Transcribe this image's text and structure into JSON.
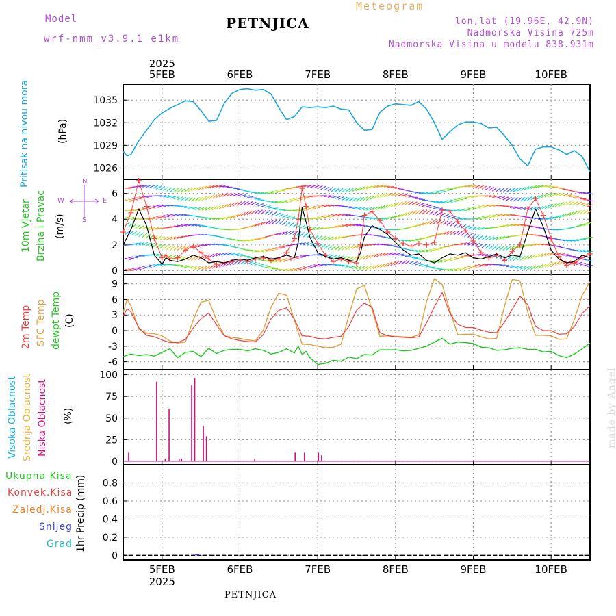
{
  "header": {
    "model_label": "Model",
    "model_name": "wrf-nmm_v3.9.1 e1km",
    "station": "PETNJICA",
    "meteogram": "Meteogram",
    "lonlat": "lon,lat (19.96E, 42.9N)",
    "altitude": "Nadmorska Visina 725m",
    "model_altitude": "Nadmorska Visina u modelu 838.931m",
    "year": "2025",
    "footer": "PETNJICA",
    "watermark": "made by Angel"
  },
  "colors": {
    "pressure": "#1aa5e0",
    "wind_speed": "#000000",
    "wind_gust": "#ff4040",
    "temp_2m": "#f04040",
    "temp_sfc": "#e0a040",
    "dewpoint": "#20c820",
    "cloud_high": "#1ab0e8",
    "cloud_mid": "#e8b040",
    "cloud_low": "#d0107f",
    "precip_total": "#20c820",
    "precip_conv": "#f04040",
    "precip_frozen": "#f08020",
    "snow": "#4040e0",
    "grad": "#20c0c0"
  },
  "chart_data": [
    {
      "type": "line",
      "panel": "pressure",
      "label_lines": [
        "Pritisak na nivou mora"
      ],
      "unit": "(hPa)",
      "x_ticks": [
        "5FEB",
        "6FEB",
        "7FEB",
        "8FEB",
        "9FEB",
        "10FEB"
      ],
      "x_range_days": [
        4.5,
        10.5
      ],
      "ylim": [
        1024.5,
        1037.1
      ],
      "yticks": [
        1026,
        1029,
        1032,
        1035
      ],
      "grid": true,
      "series": [
        {
          "x": [
            4.5,
            4.55,
            4.6,
            4.7,
            4.8,
            4.9,
            5.0,
            5.1,
            5.2,
            5.3,
            5.4,
            5.5,
            5.6,
            5.7,
            5.8,
            5.9,
            6.0,
            6.1,
            6.2,
            6.3,
            6.4,
            6.5,
            6.6,
            6.7,
            6.8,
            6.9,
            7.0,
            7.1,
            7.2,
            7.3,
            7.4,
            7.5,
            7.6,
            7.7,
            7.8,
            7.9,
            8.0,
            8.1,
            8.2,
            8.3,
            8.4,
            8.5,
            8.6,
            8.7,
            8.8,
            8.9,
            9.0,
            9.1,
            9.2,
            9.3,
            9.4,
            9.5,
            9.6,
            9.7,
            9.8,
            9.9,
            10.0,
            10.1,
            10.2,
            10.3,
            10.4,
            10.5
          ],
          "y": [
            1028.2,
            1027.6,
            1027.8,
            1029.6,
            1031.0,
            1032.4,
            1033.3,
            1033.9,
            1034.4,
            1034.9,
            1034.8,
            1033.6,
            1032.2,
            1032.3,
            1034.6,
            1035.9,
            1036.4,
            1036.5,
            1036.3,
            1036.4,
            1035.8,
            1034.0,
            1032.4,
            1032.8,
            1034.1,
            1034.0,
            1034.1,
            1034.0,
            1034.2,
            1033.8,
            1033.7,
            1032.0,
            1031.0,
            1031.1,
            1033.4,
            1034.2,
            1034.5,
            1034.4,
            1034.3,
            1034.8,
            1033.8,
            1032.0,
            1029.8,
            1030.8,
            1031.7,
            1032.1,
            1032.1,
            1031.9,
            1031.3,
            1031.4,
            1030.3,
            1029.0,
            1027.2,
            1026.3,
            1028.5,
            1028.8,
            1028.8,
            1028.4,
            1027.8,
            1028.3,
            1027.5,
            1025.5
          ]
        }
      ]
    },
    {
      "type": "line",
      "panel": "wind",
      "label_lines": [
        "10m Vjetar",
        "Brzina i Pravac"
      ],
      "unit": "(m/s)",
      "compass": [
        "N",
        "W",
        "E",
        "S"
      ],
      "ylim": [
        -0.3,
        7.1
      ],
      "yticks": [
        0,
        2,
        4,
        6
      ],
      "grid": true,
      "series": [
        {
          "name": "speed",
          "x": [
            4.5,
            4.6,
            4.7,
            4.8,
            4.9,
            5.0,
            5.05,
            5.1,
            5.2,
            5.3,
            5.4,
            5.5,
            5.6,
            5.7,
            5.8,
            5.9,
            6.0,
            6.1,
            6.2,
            6.3,
            6.4,
            6.5,
            6.6,
            6.7,
            6.75,
            6.8,
            6.85,
            6.9,
            7.0,
            7.1,
            7.2,
            7.3,
            7.4,
            7.5,
            7.55,
            7.6,
            7.7,
            7.8,
            7.9,
            8.0,
            8.1,
            8.2,
            8.3,
            8.4,
            8.5,
            8.6,
            8.7,
            8.8,
            8.9,
            9.0,
            9.1,
            9.2,
            9.3,
            9.4,
            9.5,
            9.6,
            9.7,
            9.8,
            9.9,
            10.0,
            10.1,
            10.2,
            10.3,
            10.4,
            10.5
          ],
          "y": [
            2.0,
            3.2,
            4.8,
            3.5,
            1.2,
            0.5,
            1.0,
            0.8,
            0.7,
            0.9,
            1.2,
            1.0,
            0.6,
            0.7,
            0.6,
            0.8,
            0.9,
            0.8,
            1.0,
            1.1,
            0.9,
            1.0,
            1.2,
            1.0,
            2.2,
            4.9,
            3.8,
            2.6,
            1.4,
            1.1,
            0.9,
            1.0,
            0.8,
            0.7,
            1.4,
            2.6,
            3.5,
            3.2,
            2.8,
            2.2,
            1.6,
            1.2,
            1.3,
            0.8,
            0.6,
            1.0,
            1.3,
            1.2,
            1.4,
            1.0,
            0.9,
            1.1,
            1.3,
            1.0,
            1.2,
            1.1,
            3.0,
            4.8,
            3.4,
            1.6,
            0.9,
            0.6,
            0.7,
            1.2,
            1.0
          ]
        },
        {
          "name": "gust",
          "x": [
            4.5,
            4.6,
            4.7,
            4.8,
            4.9,
            5.0,
            5.05,
            5.1,
            5.2,
            5.3,
            5.4,
            5.5,
            5.6,
            5.7,
            5.8,
            5.9,
            6.0,
            6.1,
            6.2,
            6.3,
            6.4,
            6.5,
            6.6,
            6.7,
            6.75,
            6.8,
            6.85,
            6.9,
            7.0,
            7.1,
            7.2,
            7.3,
            7.4,
            7.5,
            7.55,
            7.6,
            7.7,
            7.8,
            7.9,
            8.0,
            8.1,
            8.2,
            8.3,
            8.4,
            8.5,
            8.6,
            8.7,
            8.8,
            8.9,
            9.0,
            9.1,
            9.2,
            9.3,
            9.4,
            9.5,
            9.6,
            9.7,
            9.8,
            9.9,
            10.0,
            10.1,
            10.2,
            10.3,
            10.4,
            10.5
          ],
          "y": [
            3.0,
            4.5,
            7.0,
            5.0,
            2.5,
            1.0,
            1.2,
            0.9,
            1.0,
            1.6,
            1.9,
            1.4,
            0.9,
            0.5,
            0.6,
            0.7,
            0.8,
            0.7,
            0.9,
            1.0,
            0.8,
            0.9,
            1.4,
            2.5,
            4.0,
            6.4,
            5.0,
            3.2,
            2.1,
            1.2,
            0.7,
            0.9,
            0.7,
            0.6,
            2.0,
            4.3,
            4.6,
            3.9,
            3.0,
            2.5,
            2.1,
            1.9,
            2.1,
            2.0,
            2.2,
            4.7,
            4.6,
            3.8,
            3.1,
            2.3,
            1.4,
            1.0,
            1.2,
            0.8,
            1.5,
            2.0,
            4.8,
            5.6,
            4.3,
            2.5,
            1.1,
            0.4,
            0.6,
            1.0,
            1.3
          ]
        }
      ]
    },
    {
      "type": "line",
      "panel": "temperature",
      "label_lines": [
        "2m Temp",
        "SFC Temp",
        "dewpt Temp"
      ],
      "unit": "(C)",
      "ylim": [
        -7.5,
        10.8
      ],
      "yticks": [
        -6,
        -3,
        0,
        3,
        6,
        9
      ],
      "grid": true,
      "series": [
        {
          "name": "2m",
          "x": [
            4.5,
            4.55,
            4.6,
            4.7,
            4.8,
            4.9,
            5.0,
            5.1,
            5.2,
            5.3,
            5.4,
            5.5,
            5.6,
            5.7,
            5.8,
            5.9,
            6.0,
            6.1,
            6.2,
            6.3,
            6.4,
            6.5,
            6.6,
            6.7,
            6.8,
            6.9,
            7.0,
            7.1,
            7.2,
            7.3,
            7.4,
            7.5,
            7.6,
            7.7,
            7.8,
            7.9,
            8.0,
            8.1,
            8.2,
            8.3,
            8.4,
            8.5,
            8.6,
            8.7,
            8.8,
            8.9,
            9.0,
            9.1,
            9.2,
            9.3,
            9.4,
            9.5,
            9.6,
            9.7,
            9.8,
            9.9,
            10.0,
            10.1,
            10.2,
            10.3,
            10.4,
            10.5
          ],
          "y": [
            2.8,
            4.2,
            3.6,
            0.6,
            -0.9,
            -1.2,
            -1.8,
            -2.3,
            -2.3,
            -1.7,
            0.5,
            2.3,
            3.4,
            1.1,
            -1.0,
            -1.6,
            -1.9,
            -2.1,
            -2.2,
            -0.8,
            2.3,
            3.9,
            4.4,
            2.2,
            -1.0,
            -1.1,
            -1.5,
            -1.6,
            -1.3,
            -1.1,
            0.8,
            3.9,
            5.3,
            4.5,
            -0.4,
            -1.0,
            -1.2,
            -1.3,
            -1.4,
            -1.2,
            1.5,
            4.6,
            7.3,
            3.3,
            1.2,
            0.6,
            0.6,
            0.1,
            -0.3,
            -0.4,
            1.6,
            4.1,
            6.6,
            5.0,
            0.8,
            0.0,
            0.0,
            -0.7,
            -0.6,
            0.8,
            3.3,
            4.8
          ]
        },
        {
          "name": "sfc",
          "x": [
            4.5,
            4.55,
            4.6,
            4.7,
            4.8,
            4.9,
            5.0,
            5.1,
            5.2,
            5.3,
            5.4,
            5.5,
            5.6,
            5.7,
            5.8,
            5.9,
            6.0,
            6.1,
            6.2,
            6.3,
            6.4,
            6.5,
            6.6,
            6.7,
            6.8,
            6.9,
            7.0,
            7.1,
            7.2,
            7.3,
            7.4,
            7.5,
            7.6,
            7.7,
            7.8,
            7.9,
            8.0,
            8.1,
            8.2,
            8.3,
            8.4,
            8.5,
            8.6,
            8.7,
            8.8,
            8.9,
            9.0,
            9.1,
            9.2,
            9.3,
            9.4,
            9.5,
            9.6,
            9.7,
            9.8,
            9.9,
            10.0,
            10.1,
            10.2,
            10.3,
            10.4,
            10.5
          ],
          "y": [
            3.5,
            6.0,
            4.8,
            0.3,
            -0.5,
            -0.6,
            -1.0,
            -2.0,
            -2.4,
            -2.2,
            2.0,
            5.5,
            5.8,
            2.0,
            -1.0,
            -1.3,
            -1.5,
            -1.8,
            -2.0,
            0.1,
            4.5,
            7.2,
            6.8,
            2.0,
            -2.6,
            -2.7,
            -3.0,
            -3.3,
            -3.2,
            -2.6,
            2.8,
            8.0,
            8.7,
            4.0,
            -1.1,
            -1.0,
            -1.1,
            -1.2,
            -1.3,
            -0.8,
            5.6,
            10.0,
            8.9,
            3.8,
            -0.8,
            -0.7,
            -0.7,
            -1.2,
            -1.6,
            -1.5,
            4.6,
            9.8,
            9.6,
            3.5,
            -0.9,
            -0.9,
            -1.0,
            -1.7,
            -1.6,
            2.2,
            6.8,
            9.4
          ]
        },
        {
          "name": "dewpt",
          "x": [
            4.5,
            4.6,
            4.7,
            4.8,
            4.9,
            5.0,
            5.1,
            5.2,
            5.3,
            5.4,
            5.5,
            5.6,
            5.7,
            5.8,
            5.9,
            6.0,
            6.1,
            6.2,
            6.3,
            6.4,
            6.5,
            6.6,
            6.7,
            6.75,
            6.8,
            6.85,
            6.9,
            7.0,
            7.1,
            7.2,
            7.3,
            7.4,
            7.5,
            7.6,
            7.7,
            7.8,
            7.9,
            8.0,
            8.1,
            8.2,
            8.3,
            8.4,
            8.5,
            8.6,
            8.7,
            8.8,
            8.9,
            9.0,
            9.1,
            9.2,
            9.3,
            9.4,
            9.5,
            9.6,
            9.7,
            9.8,
            9.9,
            10.0,
            10.1,
            10.2,
            10.3,
            10.4,
            10.5
          ],
          "y": [
            -5.0,
            -4.5,
            -4.8,
            -4.6,
            -4.9,
            -4.2,
            -3.5,
            -5.2,
            -4.2,
            -4.0,
            -5.0,
            -3.4,
            -4.4,
            -3.8,
            -3.6,
            -3.6,
            -3.9,
            -3.5,
            -3.8,
            -4.5,
            -4.2,
            -3.5,
            -4.3,
            -3.0,
            -4.6,
            -4.0,
            -5.2,
            -6.5,
            -6.3,
            -5.7,
            -5.9,
            -5.1,
            -5.4,
            -4.6,
            -4.7,
            -3.7,
            -3.7,
            -3.7,
            -3.9,
            -3.8,
            -3.4,
            -3.0,
            -2.2,
            -1.5,
            -2.6,
            -2.2,
            -2.3,
            -2.5,
            -3.2,
            -3.3,
            -3.8,
            -3.7,
            -3.4,
            -3.3,
            -3.6,
            -3.6,
            -4.1,
            -4.0,
            -4.8,
            -5.2,
            -4.5,
            -3.5,
            -2.4
          ]
        }
      ]
    },
    {
      "type": "bar",
      "panel": "cloud",
      "label_lines": [
        "Visoka Oblacnost",
        "Srednja Oblacnost",
        "Niska Oblacnost"
      ],
      "unit": "(%)",
      "ylim": [
        -4,
        106
      ],
      "yticks": [
        0,
        25,
        50,
        75,
        100
      ],
      "grid": true,
      "series": [
        {
          "name": "low",
          "x": [
            4.57,
            4.93,
            5.04,
            5.09,
            5.22,
            5.25,
            5.38,
            5.42,
            5.53,
            5.57,
            6.19,
            6.71,
            6.83,
            7.01,
            7.05
          ],
          "y": [
            10,
            92,
            3,
            61,
            3,
            3,
            88,
            96,
            41,
            29,
            3,
            10,
            10,
            10,
            7
          ]
        }
      ]
    },
    {
      "type": "bar",
      "panel": "precip",
      "label_lines": [
        "Ukupna Kisa",
        "Konvek.Kisa",
        "Zaledj.Kisa",
        "Snijeg",
        "Grad"
      ],
      "unit": "1hr Precip (mm)",
      "ylim": [
        -0.05,
        1.0
      ],
      "yticks": [
        0,
        0.2,
        0.4,
        0.6,
        0.8
      ],
      "ytick_labels": [
        "0",
        "0.2",
        "0.4",
        "0.6",
        "0.8"
      ],
      "grid": true,
      "series": [
        {
          "name": "snow",
          "x": [
            5.45
          ],
          "y": [
            0.01
          ]
        }
      ]
    }
  ]
}
